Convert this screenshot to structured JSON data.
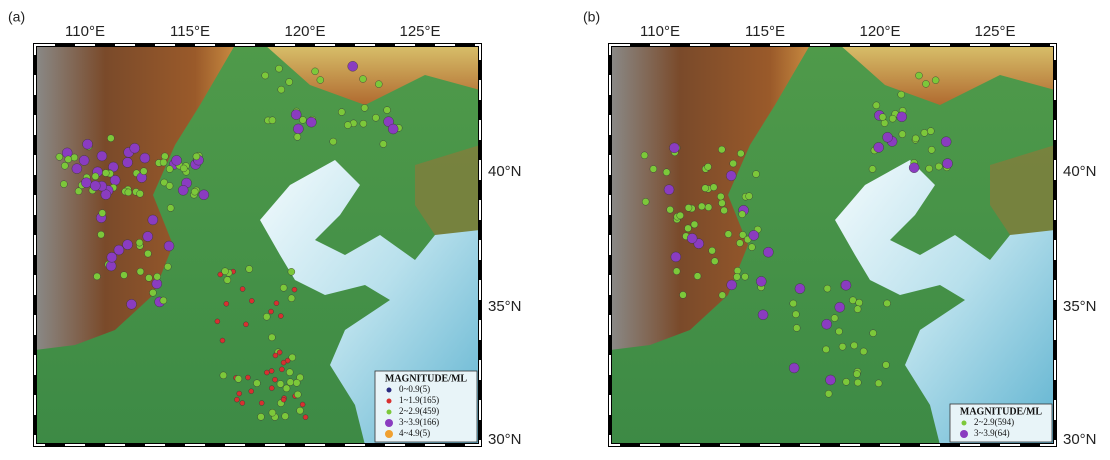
{
  "panels": [
    {
      "label": "(a)",
      "lon_labels": [
        "110°E",
        "115°E",
        "120°E",
        "125°E"
      ],
      "lat_labels": [
        "40°N",
        "35°N",
        "30°N"
      ],
      "legend": {
        "title": "MAGNITUDE/ML",
        "entries": [
          {
            "label": "0~0.9(5)",
            "color": "#2a2a80"
          },
          {
            "label": "1~1.9(165)",
            "color": "#d83030"
          },
          {
            "label": "2~2.9(459)",
            "color": "#7cc83a"
          },
          {
            "label": "3~3.9(166)",
            "color": "#8a3cc0"
          },
          {
            "label": "4~4.9(5)",
            "color": "#f0a030"
          }
        ]
      }
    },
    {
      "label": "(b)",
      "lon_labels": [
        "110°E",
        "115°E",
        "120°E",
        "125°E"
      ],
      "lat_labels": [
        "40°N",
        "35°N",
        "30°N"
      ],
      "legend": {
        "title": "MAGNITUDE/ML",
        "entries": [
          {
            "label": "2~2.9(594)",
            "color": "#7cc83a"
          },
          {
            "label": "3~3.9(64)",
            "color": "#8a3cc0"
          }
        ]
      }
    }
  ]
}
